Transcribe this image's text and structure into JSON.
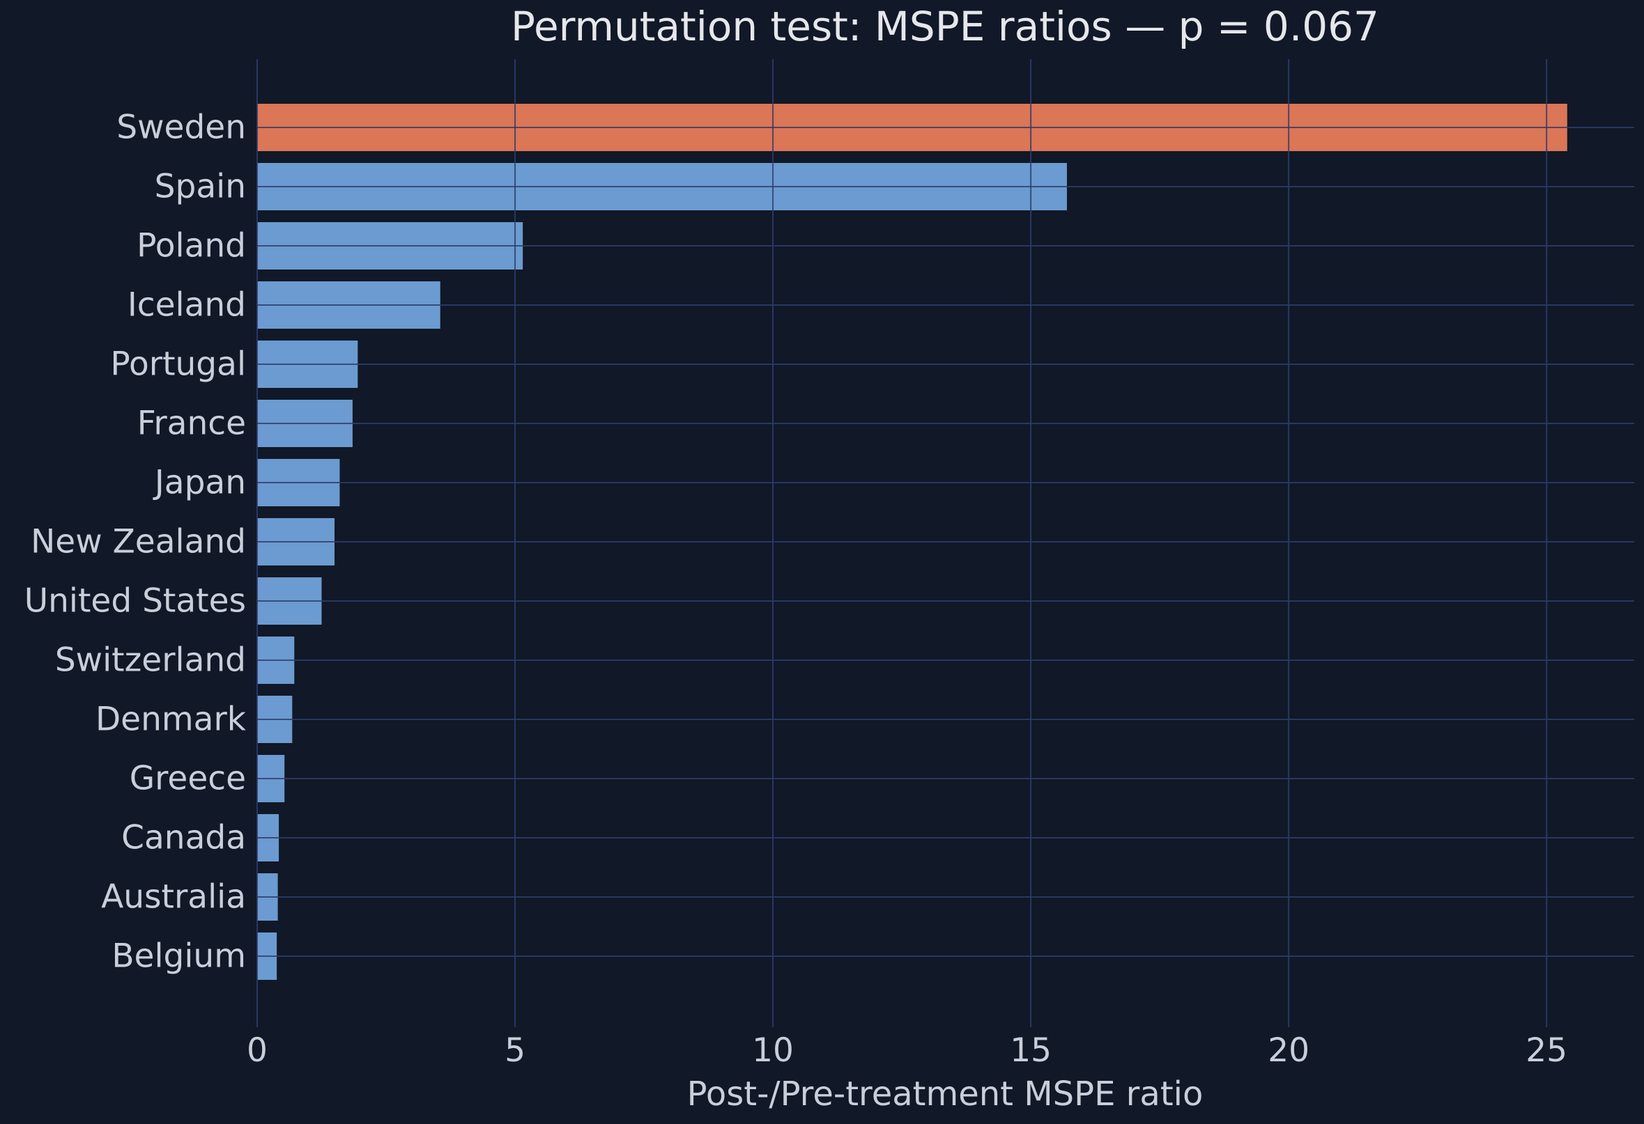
{
  "chart_data": {
    "type": "bar",
    "orientation": "horizontal",
    "title": "Permutation test: MSPE ratios — p = 0.067",
    "xlabel": "Post-/Pre-treatment MSPE ratio",
    "ylabel": "",
    "xlim": [
      0,
      26.7
    ],
    "xticks": [
      0,
      5,
      10,
      15,
      20,
      25
    ],
    "grid": true,
    "categories": [
      "Sweden",
      "Spain",
      "Poland",
      "Iceland",
      "Portugal",
      "France",
      "Japan",
      "New Zealand",
      "United States",
      "Switzerland",
      "Denmark",
      "Greece",
      "Canada",
      "Australia",
      "Belgium"
    ],
    "values": [
      25.4,
      15.7,
      5.15,
      3.55,
      1.95,
      1.85,
      1.6,
      1.5,
      1.25,
      0.72,
      0.68,
      0.53,
      0.42,
      0.4,
      0.38
    ],
    "highlight": "Sweden",
    "colors": {
      "highlight": "#db7657",
      "bar": "#6b9bd0",
      "background": "#111827",
      "grid": "#1f2d54",
      "text": "#c9cfda",
      "title": "#e5e7eb"
    }
  }
}
